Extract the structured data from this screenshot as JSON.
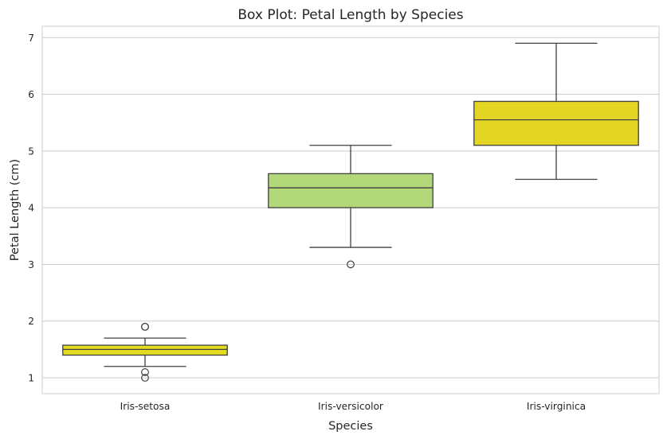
{
  "chart_data": {
    "type": "box",
    "title": "Box Plot: Petal Length by Species",
    "xlabel": "Species",
    "ylabel": "Petal Length (cm)",
    "ylim": [
      0.72,
      7.2
    ],
    "yticks": [
      1,
      2,
      3,
      4,
      5,
      6,
      7
    ],
    "grid": true,
    "categories": [
      "Iris-setosa",
      "Iris-versicolor",
      "Iris-virginica"
    ],
    "boxes": [
      {
        "category": "Iris-setosa",
        "whislo": 1.2,
        "q1": 1.4,
        "median": 1.5,
        "q3": 1.575,
        "whishi": 1.7,
        "fliers": [
          1.9,
          1.9,
          1.1,
          1.0
        ],
        "color": "#e4dc1e"
      },
      {
        "category": "Iris-versicolor",
        "whislo": 3.3,
        "q1": 4.0,
        "median": 4.35,
        "q3": 4.6,
        "whishi": 5.1,
        "fliers": [
          3.0
        ],
        "color": "#b2d879"
      },
      {
        "category": "Iris-virginica",
        "whislo": 4.5,
        "q1": 5.1,
        "median": 5.55,
        "q3": 5.875,
        "whishi": 6.9,
        "fliers": [],
        "color": "#e4d424"
      }
    ]
  }
}
